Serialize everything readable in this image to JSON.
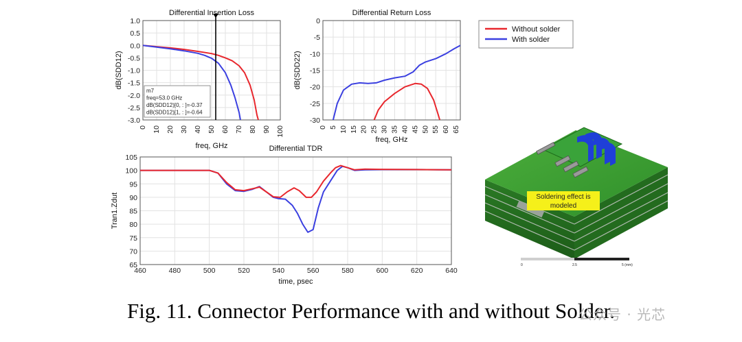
{
  "colors": {
    "without": "#e8272d",
    "with": "#3a3fe0",
    "marker": "#000000"
  },
  "legend": {
    "without_label": "Without solder",
    "with_label": "With solder"
  },
  "caption": "Fig. 11. Connector Performance with and without Solder.",
  "watermark": "公众号 · 光芯",
  "model_image": {
    "annotation_line1": "Soldering effect is",
    "annotation_line2": "modeled",
    "scale_labels": [
      "0",
      "2.5",
      "5 (mm)"
    ]
  },
  "chart_data": [
    {
      "type": "line",
      "title": "Differential Insertion Loss",
      "xlabel": "freq, GHz",
      "ylabel": "dB(SDD12)",
      "xlim": [
        0,
        100
      ],
      "ylim": [
        -3.0,
        1.0
      ],
      "xticks": [
        0,
        10,
        20,
        30,
        40,
        50,
        60,
        70,
        80,
        90,
        100
      ],
      "yticks": [
        -3.0,
        -2.5,
        -2.0,
        -1.5,
        -1.0,
        -0.5,
        0.0,
        0.5,
        1.0
      ],
      "grid": true,
      "marker": {
        "name": "m7",
        "x": 53,
        "lines": [
          "m7",
          "freq=53.0 GHz",
          "dB(SDD12)[0, : ]=-0.37",
          "dB(SDD12)[1, : ]=-0.64"
        ]
      },
      "series": [
        {
          "key": "without",
          "points": [
            [
              0,
              0
            ],
            [
              10,
              -0.05
            ],
            [
              20,
              -0.1
            ],
            [
              30,
              -0.16
            ],
            [
              40,
              -0.24
            ],
            [
              50,
              -0.33
            ],
            [
              55,
              -0.4
            ],
            [
              60,
              -0.5
            ],
            [
              65,
              -0.62
            ],
            [
              70,
              -0.82
            ],
            [
              74,
              -1.1
            ],
            [
              78,
              -1.6
            ],
            [
              81,
              -2.2
            ],
            [
              83,
              -2.8
            ],
            [
              84,
              -3.0
            ]
          ]
        },
        {
          "key": "with",
          "points": [
            [
              0,
              0
            ],
            [
              10,
              -0.07
            ],
            [
              20,
              -0.14
            ],
            [
              30,
              -0.22
            ],
            [
              40,
              -0.32
            ],
            [
              45,
              -0.4
            ],
            [
              50,
              -0.52
            ],
            [
              55,
              -0.72
            ],
            [
              60,
              -1.1
            ],
            [
              64,
              -1.6
            ],
            [
              67,
              -2.1
            ],
            [
              70,
              -2.7
            ],
            [
              71,
              -3.0
            ]
          ]
        }
      ]
    },
    {
      "type": "line",
      "title": "Differential Return Loss",
      "xlabel": "freq, GHz",
      "ylabel": "dB(SDD22)",
      "xlim": [
        0,
        67
      ],
      "ylim": [
        -30,
        0
      ],
      "xticks": [
        0,
        5,
        10,
        15,
        20,
        25,
        30,
        35,
        40,
        45,
        50,
        55,
        60,
        65
      ],
      "yticks": [
        -30,
        -25,
        -20,
        -15,
        -10,
        -5,
        0
      ],
      "grid": true,
      "series": [
        {
          "key": "without",
          "points": [
            [
              25,
              -30
            ],
            [
              27,
              -27
            ],
            [
              30,
              -24.5
            ],
            [
              35,
              -22
            ],
            [
              40,
              -20
            ],
            [
              45,
              -19
            ],
            [
              48,
              -19.2
            ],
            [
              51,
              -20.5
            ],
            [
              54,
              -24
            ],
            [
              56,
              -28
            ],
            [
              57,
              -30
            ]
          ]
        },
        {
          "key": "with",
          "points": [
            [
              5,
              -30
            ],
            [
              7,
              -25
            ],
            [
              10,
              -21
            ],
            [
              14,
              -19.2
            ],
            [
              18,
              -18.8
            ],
            [
              22,
              -19
            ],
            [
              26,
              -18.8
            ],
            [
              30,
              -18
            ],
            [
              35,
              -17.3
            ],
            [
              40,
              -16.8
            ],
            [
              44,
              -15.5
            ],
            [
              47,
              -13.5
            ],
            [
              50,
              -12.5
            ],
            [
              55,
              -11.5
            ],
            [
              60,
              -10
            ],
            [
              64,
              -8.5
            ],
            [
              67,
              -7.5
            ]
          ]
        }
      ]
    },
    {
      "type": "line",
      "title": "Differential TDR",
      "xlabel": "time, psec",
      "ylabel": "Tran1.Zdut",
      "xlim": [
        460,
        640
      ],
      "ylim": [
        65,
        105
      ],
      "xticks": [
        460,
        480,
        500,
        520,
        540,
        560,
        580,
        600,
        620,
        640
      ],
      "yticks": [
        65,
        70,
        75,
        80,
        85,
        90,
        95,
        100,
        105
      ],
      "grid": true,
      "series": [
        {
          "key": "with",
          "points": [
            [
              460,
              100
            ],
            [
              500,
              100
            ],
            [
              505,
              99
            ],
            [
              510,
              95
            ],
            [
              515,
              92.5
            ],
            [
              520,
              92.2
            ],
            [
              525,
              93
            ],
            [
              529,
              94
            ],
            [
              533,
              92
            ],
            [
              537,
              90
            ],
            [
              540,
              89.5
            ],
            [
              544,
              89.3
            ],
            [
              548,
              87
            ],
            [
              551,
              84
            ],
            [
              554,
              80
            ],
            [
              557,
              77
            ],
            [
              560,
              78
            ],
            [
              563,
              86
            ],
            [
              566,
              92
            ],
            [
              570,
              96
            ],
            [
              574,
              100
            ],
            [
              577,
              101.5
            ],
            [
              580,
              101
            ],
            [
              584,
              100
            ],
            [
              590,
              100.2
            ],
            [
              600,
              100.3
            ],
            [
              620,
              100.3
            ],
            [
              640,
              100.2
            ]
          ]
        },
        {
          "key": "without",
          "points": [
            [
              460,
              100
            ],
            [
              500,
              100
            ],
            [
              505,
              99
            ],
            [
              510,
              95.5
            ],
            [
              515,
              92.8
            ],
            [
              520,
              92.5
            ],
            [
              525,
              93.2
            ],
            [
              529,
              93.8
            ],
            [
              533,
              92
            ],
            [
              537,
              90.2
            ],
            [
              541,
              90
            ],
            [
              545,
              92
            ],
            [
              549,
              93.5
            ],
            [
              552,
              92.5
            ],
            [
              556,
              90
            ],
            [
              559,
              90
            ],
            [
              562,
              92
            ],
            [
              566,
              96
            ],
            [
              570,
              99
            ],
            [
              573,
              101
            ],
            [
              576,
              101.8
            ],
            [
              580,
              101
            ],
            [
              584,
              100.2
            ],
            [
              590,
              100.5
            ],
            [
              600,
              100.4
            ],
            [
              620,
              100.3
            ],
            [
              640,
              100.2
            ]
          ]
        }
      ]
    }
  ]
}
